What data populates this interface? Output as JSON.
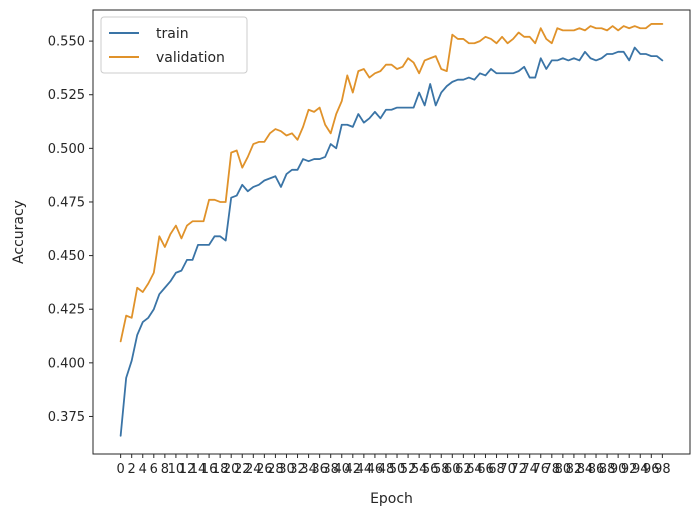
{
  "chart_data": {
    "type": "line",
    "xlabel": "Epoch",
    "ylabel": "Accuracy",
    "xlim": [
      -5.0,
      103.0
    ],
    "ylim": [
      0.3575,
      0.5645
    ],
    "x_ticks": [
      0,
      2,
      4,
      6,
      8,
      10,
      12,
      14,
      16,
      18,
      20,
      22,
      24,
      26,
      28,
      30,
      32,
      34,
      36,
      38,
      40,
      42,
      44,
      46,
      48,
      50,
      52,
      54,
      56,
      58,
      60,
      62,
      64,
      66,
      68,
      70,
      72,
      74,
      76,
      78,
      80,
      82,
      84,
      86,
      88,
      90,
      92,
      94,
      96,
      98
    ],
    "y_ticks": [
      0.375,
      0.4,
      0.425,
      0.45,
      0.475,
      0.5,
      0.525,
      0.55
    ],
    "y_tick_labels": [
      "0.375",
      "0.400",
      "0.425",
      "0.450",
      "0.475",
      "0.500",
      "0.525",
      "0.550"
    ],
    "grid": false,
    "legend_position": "top-left",
    "series": [
      {
        "name": "train",
        "color": "#3a74a6",
        "values": [
          0.366,
          0.393,
          0.401,
          0.413,
          0.419,
          0.421,
          0.425,
          0.432,
          0.435,
          0.438,
          0.442,
          0.443,
          0.448,
          0.448,
          0.455,
          0.455,
          0.455,
          0.459,
          0.459,
          0.457,
          0.477,
          0.478,
          0.483,
          0.48,
          0.482,
          0.483,
          0.485,
          0.486,
          0.487,
          0.482,
          0.488,
          0.49,
          0.49,
          0.495,
          0.494,
          0.495,
          0.495,
          0.496,
          0.502,
          0.5,
          0.511,
          0.511,
          0.51,
          0.516,
          0.512,
          0.514,
          0.517,
          0.514,
          0.518,
          0.518,
          0.519,
          0.519,
          0.519,
          0.519,
          0.526,
          0.52,
          0.53,
          0.52,
          0.526,
          0.529,
          0.531,
          0.532,
          0.532,
          0.533,
          0.532,
          0.535,
          0.534,
          0.537,
          0.535,
          0.535,
          0.535,
          0.535,
          0.536,
          0.538,
          0.533,
          0.533,
          0.542,
          0.537,
          0.541,
          0.541,
          0.542,
          0.541,
          0.542,
          0.541,
          0.545,
          0.542,
          0.541,
          0.542,
          0.544,
          0.544,
          0.545,
          0.545,
          0.541,
          0.547,
          0.544,
          0.544,
          0.543,
          0.543,
          0.541
        ]
      },
      {
        "name": "validation",
        "color": "#e0922a",
        "values": [
          0.41,
          0.422,
          0.421,
          0.435,
          0.433,
          0.437,
          0.442,
          0.459,
          0.454,
          0.46,
          0.464,
          0.458,
          0.464,
          0.466,
          0.466,
          0.466,
          0.476,
          0.476,
          0.475,
          0.475,
          0.498,
          0.499,
          0.491,
          0.496,
          0.502,
          0.503,
          0.503,
          0.507,
          0.509,
          0.508,
          0.506,
          0.507,
          0.504,
          0.51,
          0.518,
          0.517,
          0.519,
          0.511,
          0.507,
          0.516,
          0.522,
          0.534,
          0.526,
          0.536,
          0.537,
          0.533,
          0.535,
          0.536,
          0.539,
          0.539,
          0.537,
          0.538,
          0.542,
          0.54,
          0.535,
          0.541,
          0.542,
          0.543,
          0.537,
          0.536,
          0.553,
          0.551,
          0.551,
          0.549,
          0.549,
          0.55,
          0.552,
          0.551,
          0.549,
          0.552,
          0.549,
          0.551,
          0.554,
          0.552,
          0.552,
          0.549,
          0.556,
          0.551,
          0.549,
          0.556,
          0.555,
          0.555,
          0.555,
          0.556,
          0.555,
          0.557,
          0.556,
          0.556,
          0.555,
          0.557,
          0.555,
          0.557,
          0.556,
          0.557,
          0.556,
          0.556,
          0.558,
          0.558,
          0.558
        ]
      }
    ]
  }
}
